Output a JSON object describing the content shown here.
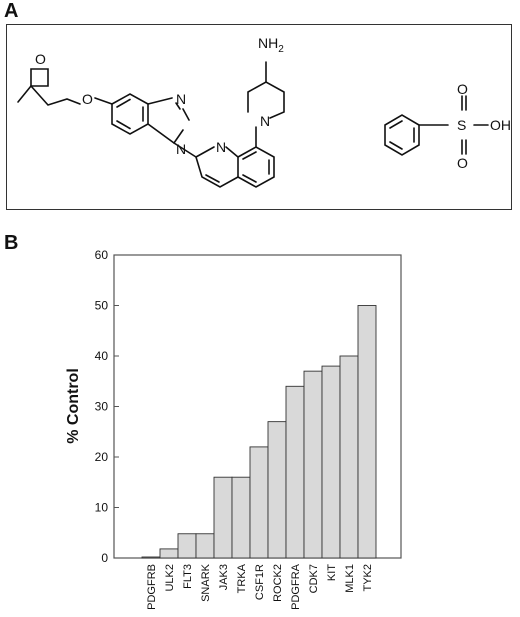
{
  "panels": {
    "a_label": "A",
    "b_label": "B"
  },
  "structures": {
    "atoms": {
      "amine": "NH",
      "amine_sub": "2",
      "pip_n": "N",
      "ether_o": "O",
      "oxetane_o": "O",
      "bz_n_top": "N",
      "bz_n_bot": "N",
      "quin_n": "N",
      "sulfur": "S",
      "so_top": "O",
      "so_bot": "O",
      "so_h": "OH"
    }
  },
  "chart_data": {
    "type": "bar",
    "categories": [
      "PDGFRB",
      "ULK2",
      "FLT3",
      "SNARK",
      "JAK3",
      "TRKA",
      "CSF1R",
      "ROCK2",
      "PDGFRA",
      "CDK7",
      "KIT",
      "MLK1",
      "TYK2"
    ],
    "values": [
      0.2,
      1.8,
      4.8,
      4.8,
      16,
      16,
      22,
      27,
      34,
      37,
      38,
      40,
      50
    ],
    "ylabel": "% Control",
    "xlabel": "",
    "ylim": [
      0,
      60
    ],
    "yticks": [
      0,
      10,
      20,
      30,
      40,
      50,
      60
    ],
    "bar_color": "#d9d9d9",
    "grid": false
  }
}
